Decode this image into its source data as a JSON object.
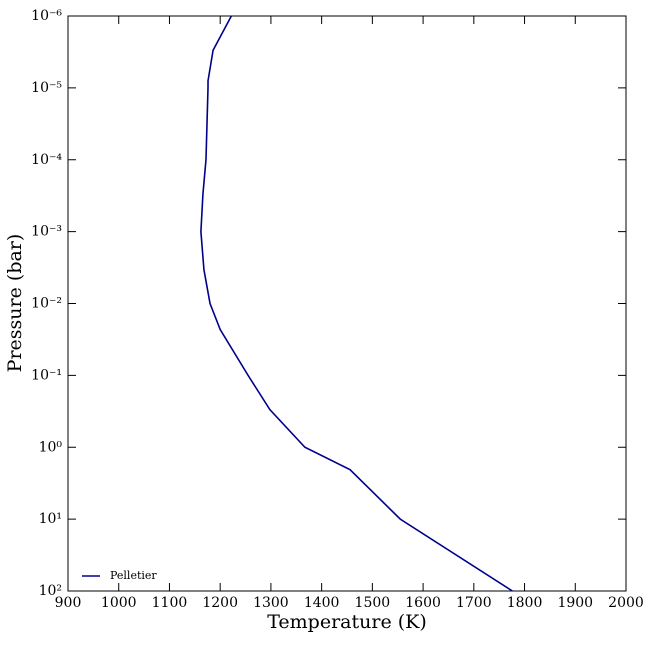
{
  "chart_data": {
    "type": "line",
    "xlabel": "Temperature (K)",
    "ylabel": "Pressure (bar)",
    "xlim": [
      900,
      2000
    ],
    "xticks": [
      900,
      1000,
      1100,
      1200,
      1300,
      1400,
      1500,
      1600,
      1700,
      1800,
      1900,
      2000
    ],
    "ylim": [
      1e-06,
      100
    ],
    "yscale": "log",
    "yinverted": true,
    "yticks": [
      {
        "value": 1e-06,
        "label": "10⁻⁶"
      },
      {
        "value": 1e-05,
        "label": "10⁻⁵"
      },
      {
        "value": 0.0001,
        "label": "10⁻⁴"
      },
      {
        "value": 0.001,
        "label": "10⁻³"
      },
      {
        "value": 0.01,
        "label": "10⁻²"
      },
      {
        "value": 0.1,
        "label": "10⁻¹"
      },
      {
        "value": 1,
        "label": "10⁰"
      },
      {
        "value": 10,
        "label": "10¹"
      },
      {
        "value": 100,
        "label": "10²"
      }
    ],
    "legend": "lower left",
    "series": [
      {
        "name": "Pelletier",
        "color": "#00008b",
        "x": [
          1222,
          1186,
          1176,
          1176,
          1172,
          1166,
          1162,
          1168,
          1180,
          1200,
          1255,
          1298,
          1367,
          1456,
          1555,
          1776
        ],
        "values": [
          1e-06,
          3e-06,
          8e-06,
          1e-05,
          0.0001,
          0.0003,
          0.001,
          0.0034,
          0.01,
          0.023,
          0.1,
          0.3,
          1,
          2.05,
          10,
          100
        ]
      }
    ]
  }
}
